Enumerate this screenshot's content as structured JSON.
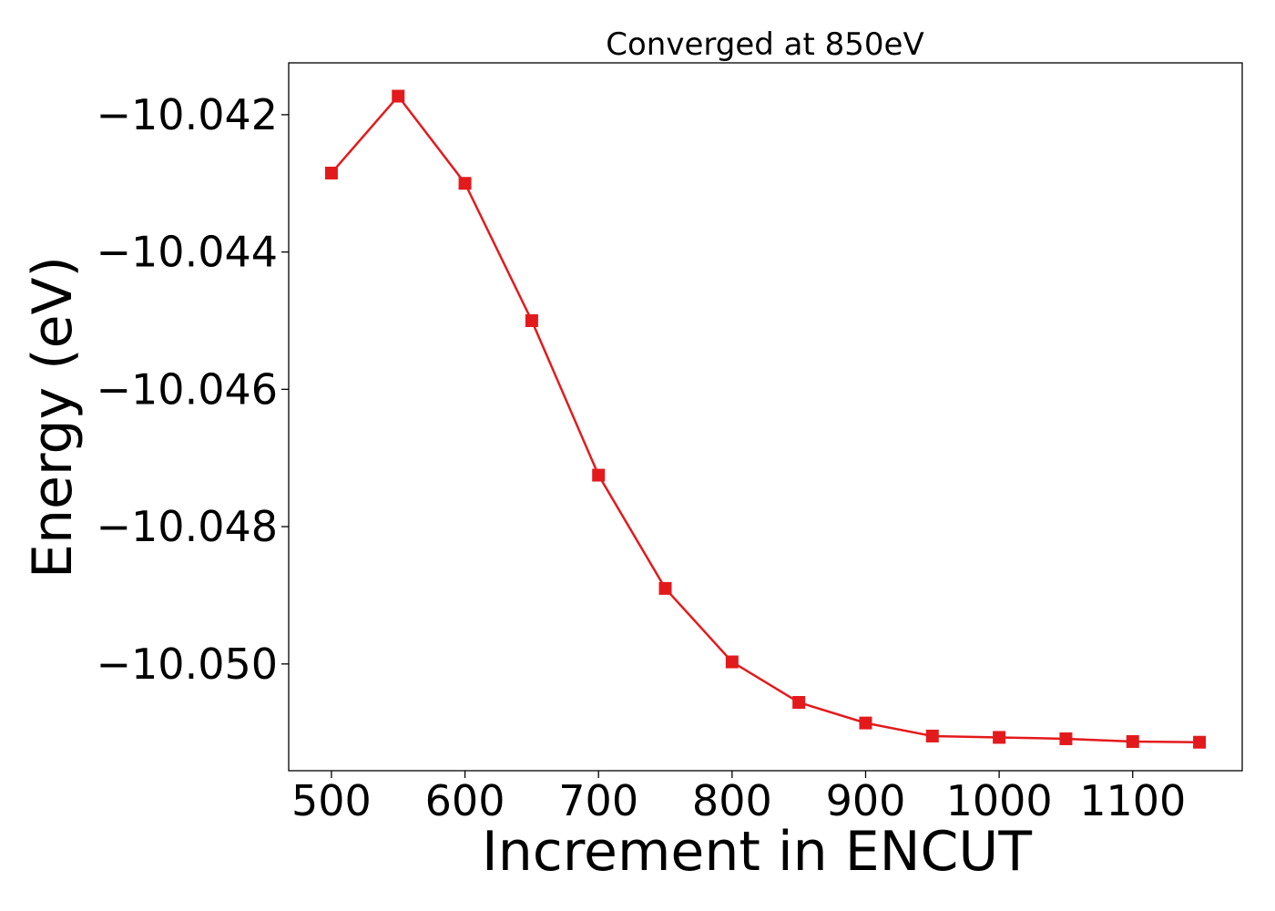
{
  "chart_data": {
    "type": "line",
    "title": "Converged at 850eV",
    "xlabel": "Increment in ENCUT",
    "ylabel": "Energy (eV)",
    "x": [
      500,
      550,
      600,
      650,
      700,
      750,
      800,
      850,
      900,
      950,
      1000,
      1050,
      1100,
      1150
    ],
    "series": [
      {
        "values": [
          -10.04285,
          -10.04173,
          -10.043,
          -10.045,
          -10.04725,
          -10.0489,
          -10.04997,
          -10.05056,
          -10.05086,
          -10.05105,
          -10.05107,
          -10.05109,
          -10.05113,
          -10.05114
        ],
        "color": "#e31a1c",
        "marker": "square"
      }
    ],
    "xlim": [
      468,
      1182
    ],
    "ylim": [
      -10.051555,
      -10.041245
    ],
    "xticks": [
      500,
      600,
      700,
      800,
      900,
      1000,
      1100
    ],
    "xtick_labels": [
      "500",
      "600",
      "700",
      "800",
      "900",
      "1000",
      "1100"
    ],
    "yticks": [
      -10.042,
      -10.044,
      -10.046,
      -10.048,
      -10.05
    ],
    "ytick_labels": [
      "−10.042",
      "−10.044",
      "−10.046",
      "−10.048",
      "−10.050"
    ],
    "grid": false,
    "legend": "none"
  }
}
